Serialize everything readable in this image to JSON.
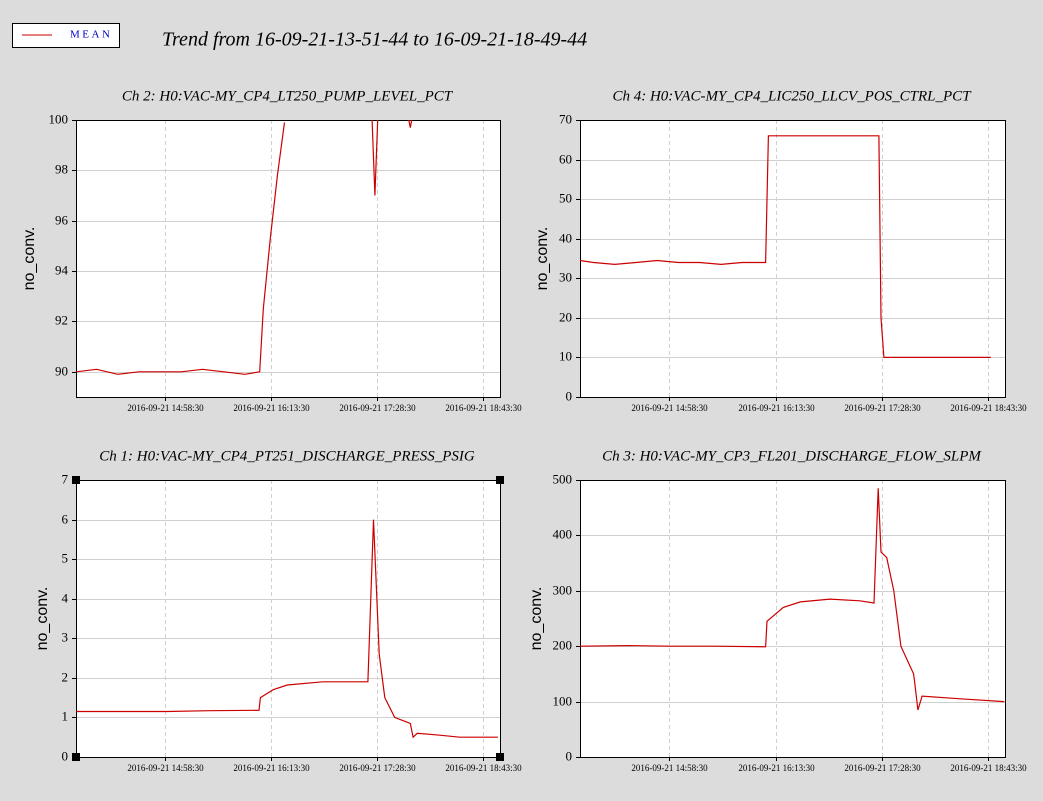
{
  "title": "Trend from 16-09-21-13-51-44 to 16-09-21-18-49-44",
  "legend": {
    "label": "MEAN",
    "color": "#cc0000"
  },
  "chart_data": [
    {
      "type": "line",
      "title": "Ch 2: H0:VAC-MY_CP4_LT250_PUMP_LEVEL_PCT",
      "ylabel": "no_conv.",
      "x": [
        "2016-09-21 13:55:30",
        "2016-09-21 14:10:00",
        "2016-09-21 14:25:00",
        "2016-09-21 14:40:00",
        "2016-09-21 14:55:00",
        "2016-09-21 15:10:00",
        "2016-09-21 15:25:00",
        "2016-09-21 15:40:00",
        "2016-09-21 15:55:00",
        "2016-09-21 16:05:30",
        "2016-09-21 16:08:00",
        "2016-09-21 16:13:00",
        "2016-09-21 16:18:00",
        "2016-09-21 16:23:00",
        "2016-09-21 17:00:00",
        "2016-09-21 17:25:00",
        "2016-09-21 17:27:00",
        "2016-09-21 17:29:00",
        "2016-09-21 17:40:00",
        "2016-09-21 17:51:00",
        "2016-09-21 17:52:00",
        "2016-09-21 17:53:00"
      ],
      "series": [
        {
          "color": "#cc0000",
          "values": [
            90.0,
            90.1,
            89.9,
            90.0,
            90.0,
            90.0,
            90.1,
            90.0,
            89.9,
            90.0,
            92.5,
            95.3,
            97.8,
            99.9,
            null,
            100,
            97.0,
            100,
            null,
            100,
            99.7,
            100
          ]
        }
      ],
      "xlim": [
        "2016-09-21 13:55:30",
        "2016-09-21 18:55:30"
      ],
      "xticks": [
        "2016-09-21 14:58:30",
        "2016-09-21 16:13:30",
        "2016-09-21 17:28:30",
        "2016-09-21 18:43:30"
      ],
      "ylim": [
        89,
        100
      ],
      "yticks": [
        90,
        92,
        94,
        96,
        98,
        100
      ],
      "grid": true
    },
    {
      "type": "line",
      "title": "Ch 4: H0:VAC-MY_CP4_LIC250_LLCV_POS_CTRL_PCT",
      "ylabel": "no_conv.",
      "x": [
        "2016-09-21 13:55:30",
        "2016-09-21 14:05:00",
        "2016-09-21 14:20:00",
        "2016-09-21 14:35:00",
        "2016-09-21 14:50:00",
        "2016-09-21 15:05:00",
        "2016-09-21 15:20:00",
        "2016-09-21 15:35:00",
        "2016-09-21 15:50:00",
        "2016-09-21 16:05:00",
        "2016-09-21 16:06:30",
        "2016-09-21 16:08:30",
        "2016-09-21 17:26:30",
        "2016-09-21 17:28:00",
        "2016-09-21 17:30:00",
        "2016-09-21 18:45:30"
      ],
      "series": [
        {
          "color": "#cc0000",
          "values": [
            34.5,
            34,
            33.5,
            34,
            34.5,
            34,
            34,
            33.5,
            34,
            34,
            34,
            66,
            66,
            20,
            10,
            10
          ]
        }
      ],
      "xlim": [
        "2016-09-21 13:55:30",
        "2016-09-21 18:55:30"
      ],
      "xticks": [
        "2016-09-21 14:58:30",
        "2016-09-21 16:13:30",
        "2016-09-21 17:28:30",
        "2016-09-21 18:43:30"
      ],
      "ylim": [
        0,
        70
      ],
      "yticks": [
        0,
        10,
        20,
        30,
        40,
        50,
        60,
        70
      ],
      "grid": true
    },
    {
      "type": "line",
      "title": "Ch 1: H0:VAC-MY_CP4_PT251_DISCHARGE_PRESS_PSIG",
      "ylabel": "no_conv.",
      "x": [
        "2016-09-21 13:55:30",
        "2016-09-21 14:30:00",
        "2016-09-21 15:00:00",
        "2016-09-21 15:30:00",
        "2016-09-21 16:05:00",
        "2016-09-21 16:06:00",
        "2016-09-21 16:15:00",
        "2016-09-21 16:25:00",
        "2016-09-21 16:50:00",
        "2016-09-21 17:22:00",
        "2016-09-21 17:26:00",
        "2016-09-21 17:30:00",
        "2016-09-21 17:34:00",
        "2016-09-21 17:41:00",
        "2016-09-21 17:52:00",
        "2016-09-21 17:54:00",
        "2016-09-21 17:57:00",
        "2016-09-21 18:13:00",
        "2016-09-21 18:27:00",
        "2016-09-21 18:54:00"
      ],
      "series": [
        {
          "color": "#cc0000",
          "values": [
            1.15,
            1.15,
            1.15,
            1.17,
            1.18,
            1.5,
            1.7,
            1.82,
            1.9,
            1.9,
            6.0,
            2.6,
            1.5,
            1.0,
            0.85,
            0.5,
            0.6,
            0.55,
            0.5,
            0.5
          ]
        }
      ],
      "xlim": [
        "2016-09-21 13:55:30",
        "2016-09-21 18:55:30"
      ],
      "xticks": [
        "2016-09-21 14:58:30",
        "2016-09-21 16:13:30",
        "2016-09-21 17:28:30",
        "2016-09-21 18:43:30"
      ],
      "ylim": [
        0,
        7
      ],
      "yticks": [
        0,
        1,
        2,
        3,
        4,
        5,
        6,
        7
      ],
      "grid": true
    },
    {
      "type": "line",
      "title": "Ch 3: H0:VAC-MY_CP3_FL201_DISCHARGE_FLOW_SLPM",
      "ylabel": "no_conv.",
      "x": [
        "2016-09-21 13:55:30",
        "2016-09-21 14:30:00",
        "2016-09-21 15:00:00",
        "2016-09-21 15:30:00",
        "2016-09-21 16:06:30",
        "2016-09-21 16:07:30",
        "2016-09-21 16:19:00",
        "2016-09-21 16:31:00",
        "2016-09-21 16:52:00",
        "2016-09-21 17:13:00",
        "2016-09-21 17:23:00",
        "2016-09-21 17:26:00",
        "2016-09-21 17:28:00",
        "2016-09-21 17:32:00",
        "2016-09-21 17:37:00",
        "2016-09-21 17:42:00",
        "2016-09-21 17:51:00",
        "2016-09-21 17:52:00",
        "2016-09-21 17:54:00",
        "2016-09-21 17:57:00",
        "2016-09-21 18:24:00",
        "2016-09-21 18:55:00"
      ],
      "series": [
        {
          "color": "#cc0000",
          "values": [
            200,
            201,
            200,
            200,
            199,
            245,
            270,
            280,
            285,
            282,
            278,
            485,
            370,
            360,
            300,
            200,
            150,
            130,
            85,
            110,
            105,
            100
          ]
        }
      ],
      "xlim": [
        "2016-09-21 13:55:30",
        "2016-09-21 18:55:30"
      ],
      "xticks": [
        "2016-09-21 14:58:30",
        "2016-09-21 16:13:30",
        "2016-09-21 17:28:30",
        "2016-09-21 18:43:30"
      ],
      "ylim": [
        0,
        500
      ],
      "yticks": [
        0,
        100,
        200,
        300,
        400,
        500
      ],
      "grid": true
    }
  ]
}
